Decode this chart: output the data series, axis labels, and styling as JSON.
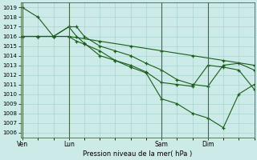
{
  "title": "Pression niveau de la mer( hPa )",
  "ylabel_values": [
    1006,
    1007,
    1008,
    1009,
    1010,
    1011,
    1012,
    1013,
    1014,
    1015,
    1016,
    1017,
    1018,
    1019
  ],
  "ylim": [
    1005.5,
    1019.5
  ],
  "background_color": "#cceae7",
  "grid_color": "#aad4d0",
  "line_color": "#1a5c1a",
  "xtick_labels": [
    "Ven",
    "Lun",
    "Sam",
    "Dim"
  ],
  "xtick_positions": [
    0,
    24,
    72,
    96
  ],
  "vline_positions": [
    0,
    24,
    72,
    96
  ],
  "xlim": [
    -1,
    120
  ],
  "series": [
    {
      "x": [
        0,
        8,
        16,
        24,
        28,
        32,
        40,
        48,
        56,
        64,
        72,
        80,
        88,
        96,
        104,
        112,
        120
      ],
      "y": [
        1019.0,
        1018.0,
        1016.0,
        1017.0,
        1017.0,
        1016.0,
        1015.0,
        1014.5,
        1014.0,
        1013.2,
        1012.5,
        1011.5,
        1011.0,
        1010.8,
        1013.0,
        1013.2,
        1012.5
      ]
    },
    {
      "x": [
        0,
        8,
        16,
        24,
        28,
        32,
        40,
        48,
        56,
        64,
        72,
        80,
        88,
        96,
        104,
        112,
        120
      ],
      "y": [
        1016.0,
        1016.0,
        1016.0,
        1017.0,
        1016.0,
        1015.3,
        1014.0,
        1013.5,
        1012.8,
        1012.2,
        1009.5,
        1009.0,
        1008.0,
        1007.5,
        1006.5,
        1010.0,
        1011.0
      ]
    },
    {
      "x": [
        0,
        8,
        16,
        24,
        28,
        32,
        40,
        48,
        56,
        64,
        72,
        80,
        88,
        96,
        104,
        112,
        120
      ],
      "y": [
        1016.0,
        1016.0,
        1016.0,
        1016.0,
        1015.5,
        1015.2,
        1014.5,
        1013.5,
        1013.0,
        1012.3,
        1011.2,
        1011.0,
        1010.8,
        1013.0,
        1012.8,
        1012.5,
        1010.5
      ]
    },
    {
      "x": [
        0,
        8,
        24,
        40,
        56,
        72,
        88,
        104,
        120
      ],
      "y": [
        1016.0,
        1016.0,
        1016.0,
        1015.5,
        1015.0,
        1014.5,
        1014.0,
        1013.5,
        1013.0
      ]
    }
  ]
}
